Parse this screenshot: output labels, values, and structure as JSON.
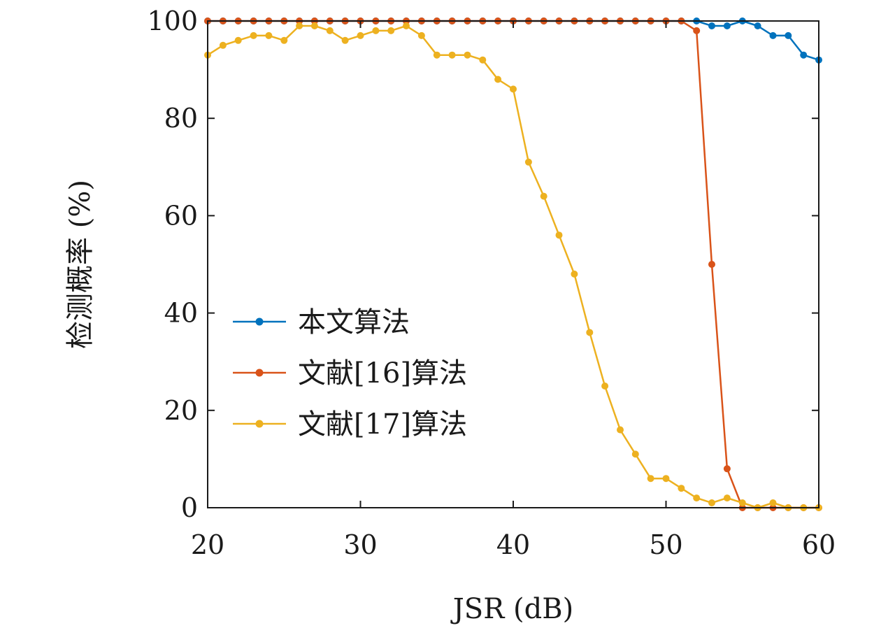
{
  "chart_data": {
    "type": "line",
    "title": "",
    "xlabel": "JSR (dB)",
    "ylabel": "检测概率 (%)",
    "xlim": [
      20,
      60
    ],
    "ylim": [
      0,
      100
    ],
    "xticks": [
      20,
      30,
      40,
      50,
      60
    ],
    "yticks": [
      0,
      20,
      40,
      60,
      80,
      100
    ],
    "grid": false,
    "legend_position": "center-left",
    "x": [
      20,
      21,
      22,
      23,
      24,
      25,
      26,
      27,
      28,
      29,
      30,
      31,
      32,
      33,
      34,
      35,
      36,
      37,
      38,
      39,
      40,
      41,
      42,
      43,
      44,
      45,
      46,
      47,
      48,
      49,
      50,
      51,
      52,
      53,
      54,
      55,
      56,
      57,
      58,
      59,
      60
    ],
    "series": [
      {
        "name": "本文算法",
        "color": "#0072bd",
        "values": [
          100,
          100,
          100,
          100,
          100,
          100,
          100,
          100,
          100,
          100,
          100,
          100,
          100,
          100,
          100,
          100,
          100,
          100,
          100,
          100,
          100,
          100,
          100,
          100,
          100,
          100,
          100,
          100,
          100,
          100,
          100,
          100,
          100,
          99,
          99,
          100,
          99,
          97,
          97,
          93,
          92
        ]
      },
      {
        "name": "文献[16]算法",
        "color": "#d95319",
        "values": [
          100,
          100,
          100,
          100,
          100,
          100,
          100,
          100,
          100,
          100,
          100,
          100,
          100,
          100,
          100,
          100,
          100,
          100,
          100,
          100,
          100,
          100,
          100,
          100,
          100,
          100,
          100,
          100,
          100,
          100,
          100,
          100,
          98,
          50,
          8,
          0,
          0,
          0,
          0,
          0,
          0
        ]
      },
      {
        "name": "文献[17]算法",
        "color": "#edb120",
        "values": [
          93,
          95,
          96,
          97,
          97,
          96,
          99,
          99,
          98,
          96,
          97,
          98,
          98,
          99,
          97,
          93,
          93,
          93,
          92,
          88,
          86,
          71,
          64,
          56,
          48,
          36,
          25,
          16,
          11,
          6,
          6,
          4,
          2,
          1,
          2,
          1,
          0,
          1,
          0,
          0,
          0
        ]
      }
    ]
  }
}
